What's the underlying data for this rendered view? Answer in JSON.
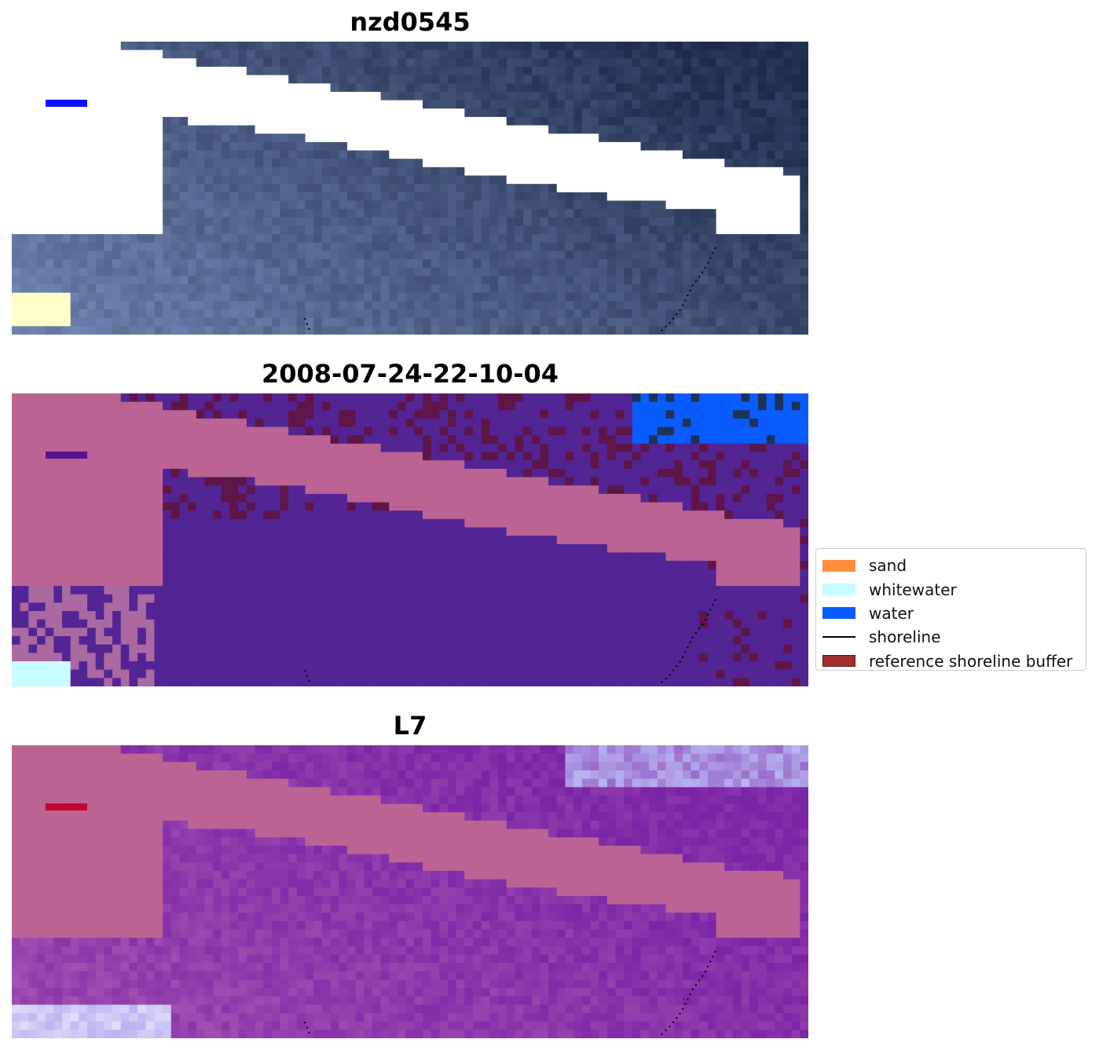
{
  "panels": [
    {
      "title": "nzd0545"
    },
    {
      "title": "2008-07-24-22-10-04"
    },
    {
      "title": "L7"
    }
  ],
  "legend": {
    "items": [
      {
        "label": "sand",
        "color": "#ff8c3a",
        "kind": "patch"
      },
      {
        "label": "whitewater",
        "color": "#c8fcff",
        "kind": "patch"
      },
      {
        "label": "water",
        "color": "#0a5cff",
        "kind": "patch"
      },
      {
        "label": "shoreline",
        "color": "#000000",
        "kind": "line"
      },
      {
        "label": "reference shoreline buffer",
        "color": "#a0302f",
        "kind": "patch-edge"
      }
    ]
  },
  "colors": {
    "rgb_dark_water": "#1d2a48",
    "rgb_light_sand": "#7b8fbf",
    "mask_white": "#ffffff",
    "buffer_overlay": "#bb6494",
    "class_water_dim": "#532594",
    "class_sand_dim": "#5e1649",
    "class_water_bright": "#0a5cff",
    "class_whitewater": "#c8fcff",
    "index_purple": "#7a24a6",
    "index_light": "#b8b4f2"
  }
}
